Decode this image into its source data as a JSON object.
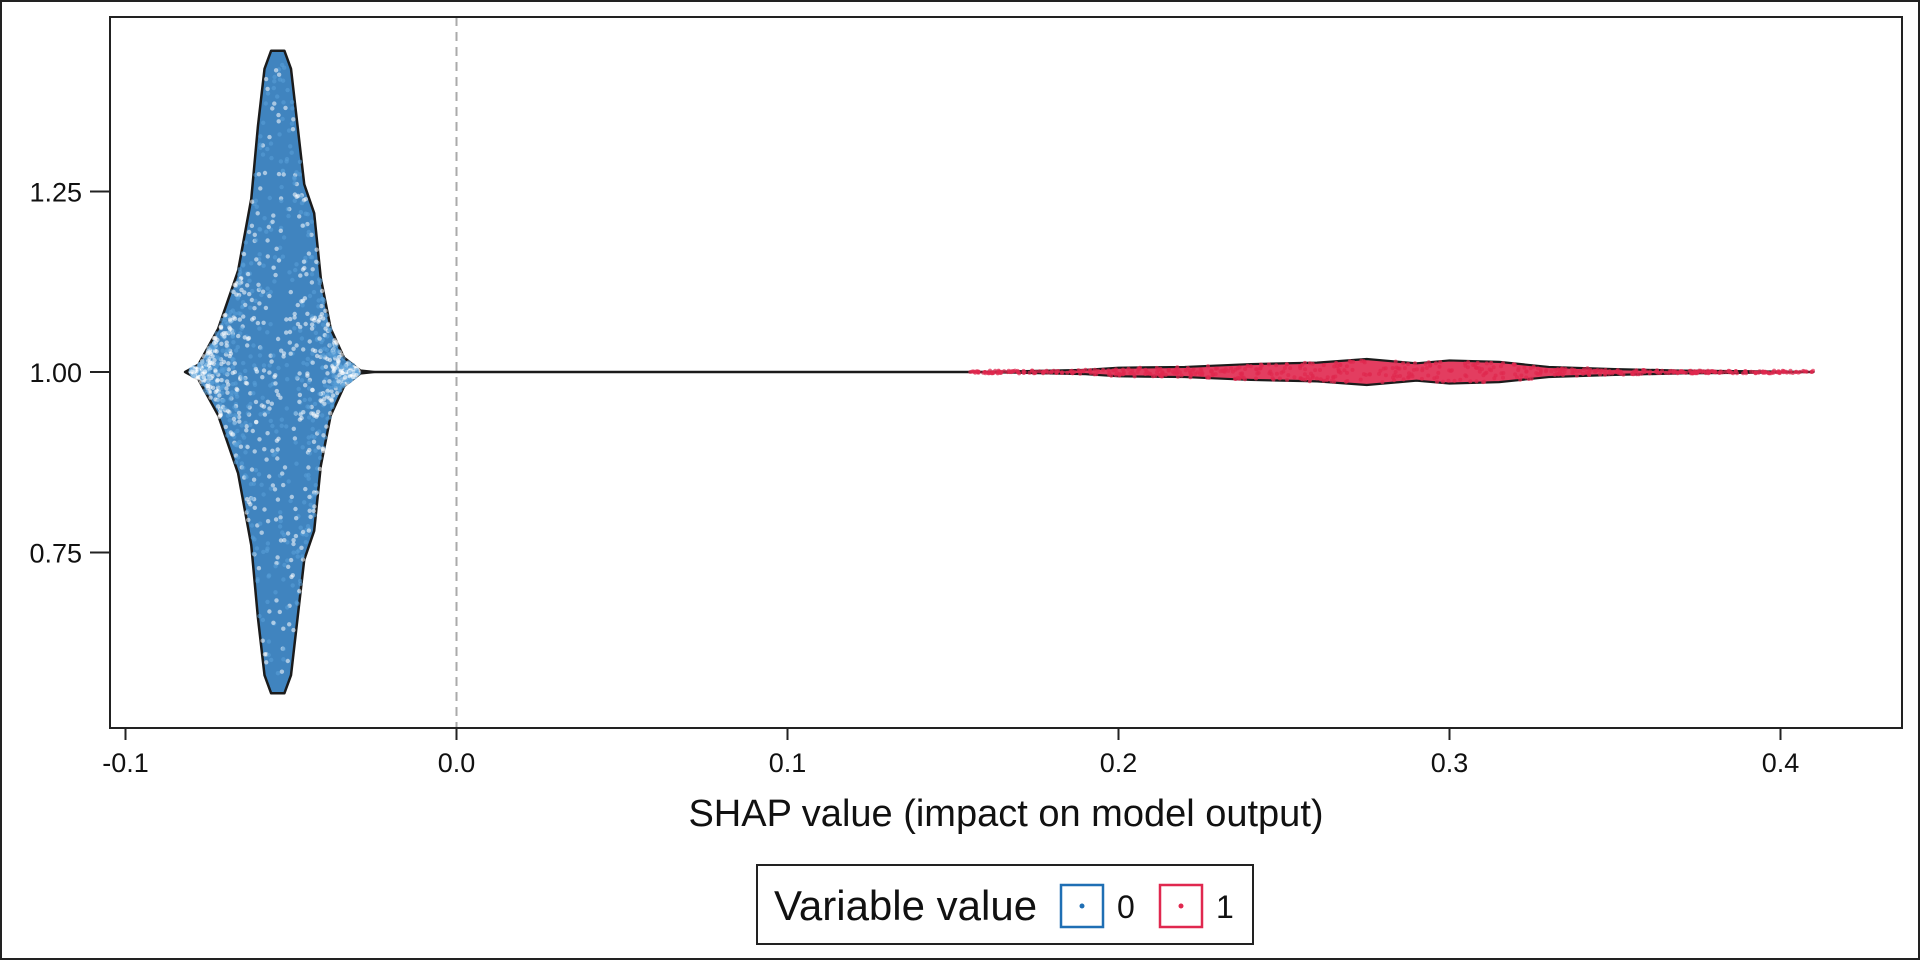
{
  "chart_data": {
    "type": "scatter",
    "subtype": "violin-beeswarm",
    "title": "",
    "xlabel": "SHAP value (impact on model output)",
    "ylabel": "",
    "xlim": [
      -0.1,
      0.43
    ],
    "ylim": [
      0.53,
      1.5
    ],
    "x_ticks": [
      -0.1,
      0.0,
      0.1,
      0.2,
      0.3,
      0.4
    ],
    "x_tick_labels": [
      "-0.1",
      "0.0",
      "0.1",
      "0.2",
      "0.3",
      "0.4"
    ],
    "y_ticks": [
      0.75,
      1.0,
      1.25
    ],
    "y_tick_labels": [
      "0.75",
      "1.00",
      "1.25"
    ],
    "reference_line": {
      "x": 0.0,
      "style": "dashed",
      "color": "#aaaaaa"
    },
    "grid": false,
    "legend": {
      "title": "Variable value",
      "placement": "bottom",
      "entries": [
        {
          "label": "0",
          "color": "#1f6fb4"
        },
        {
          "label": "1",
          "color": "#e0284f"
        }
      ]
    },
    "series": [
      {
        "name": "0",
        "color": "#1f6fb4",
        "center_y": 1.0,
        "x_range": [
          -0.082,
          -0.025
        ],
        "y_range": [
          0.55,
          1.45
        ],
        "peak_x": -0.055,
        "outline": [
          [
            -0.082,
            1.0
          ],
          [
            -0.078,
            1.01
          ],
          [
            -0.072,
            1.06
          ],
          [
            -0.066,
            1.14
          ],
          [
            -0.062,
            1.24
          ],
          [
            -0.06,
            1.34
          ],
          [
            -0.058,
            1.42
          ],
          [
            -0.056,
            1.445
          ],
          [
            -0.052,
            1.445
          ],
          [
            -0.05,
            1.42
          ],
          [
            -0.048,
            1.34
          ],
          [
            -0.046,
            1.26
          ],
          [
            -0.043,
            1.22
          ],
          [
            -0.041,
            1.13
          ],
          [
            -0.038,
            1.06
          ],
          [
            -0.034,
            1.02
          ],
          [
            -0.029,
            1.002
          ],
          [
            -0.025,
            1.0
          ]
        ]
      },
      {
        "name": "1",
        "color": "#e0284f",
        "center_y": 1.0,
        "x_range": [
          0.155,
          0.41
        ],
        "peak_x": 0.275,
        "outline": [
          [
            0.155,
            1.0
          ],
          [
            0.17,
            1.001
          ],
          [
            0.19,
            1.003
          ],
          [
            0.2,
            1.006
          ],
          [
            0.22,
            1.007
          ],
          [
            0.24,
            1.011
          ],
          [
            0.26,
            1.013
          ],
          [
            0.275,
            1.018
          ],
          [
            0.29,
            1.012
          ],
          [
            0.3,
            1.016
          ],
          [
            0.315,
            1.014
          ],
          [
            0.33,
            1.007
          ],
          [
            0.35,
            1.004
          ],
          [
            0.37,
            1.002
          ],
          [
            0.39,
            1.001
          ],
          [
            0.41,
            1.0
          ]
        ]
      }
    ]
  }
}
